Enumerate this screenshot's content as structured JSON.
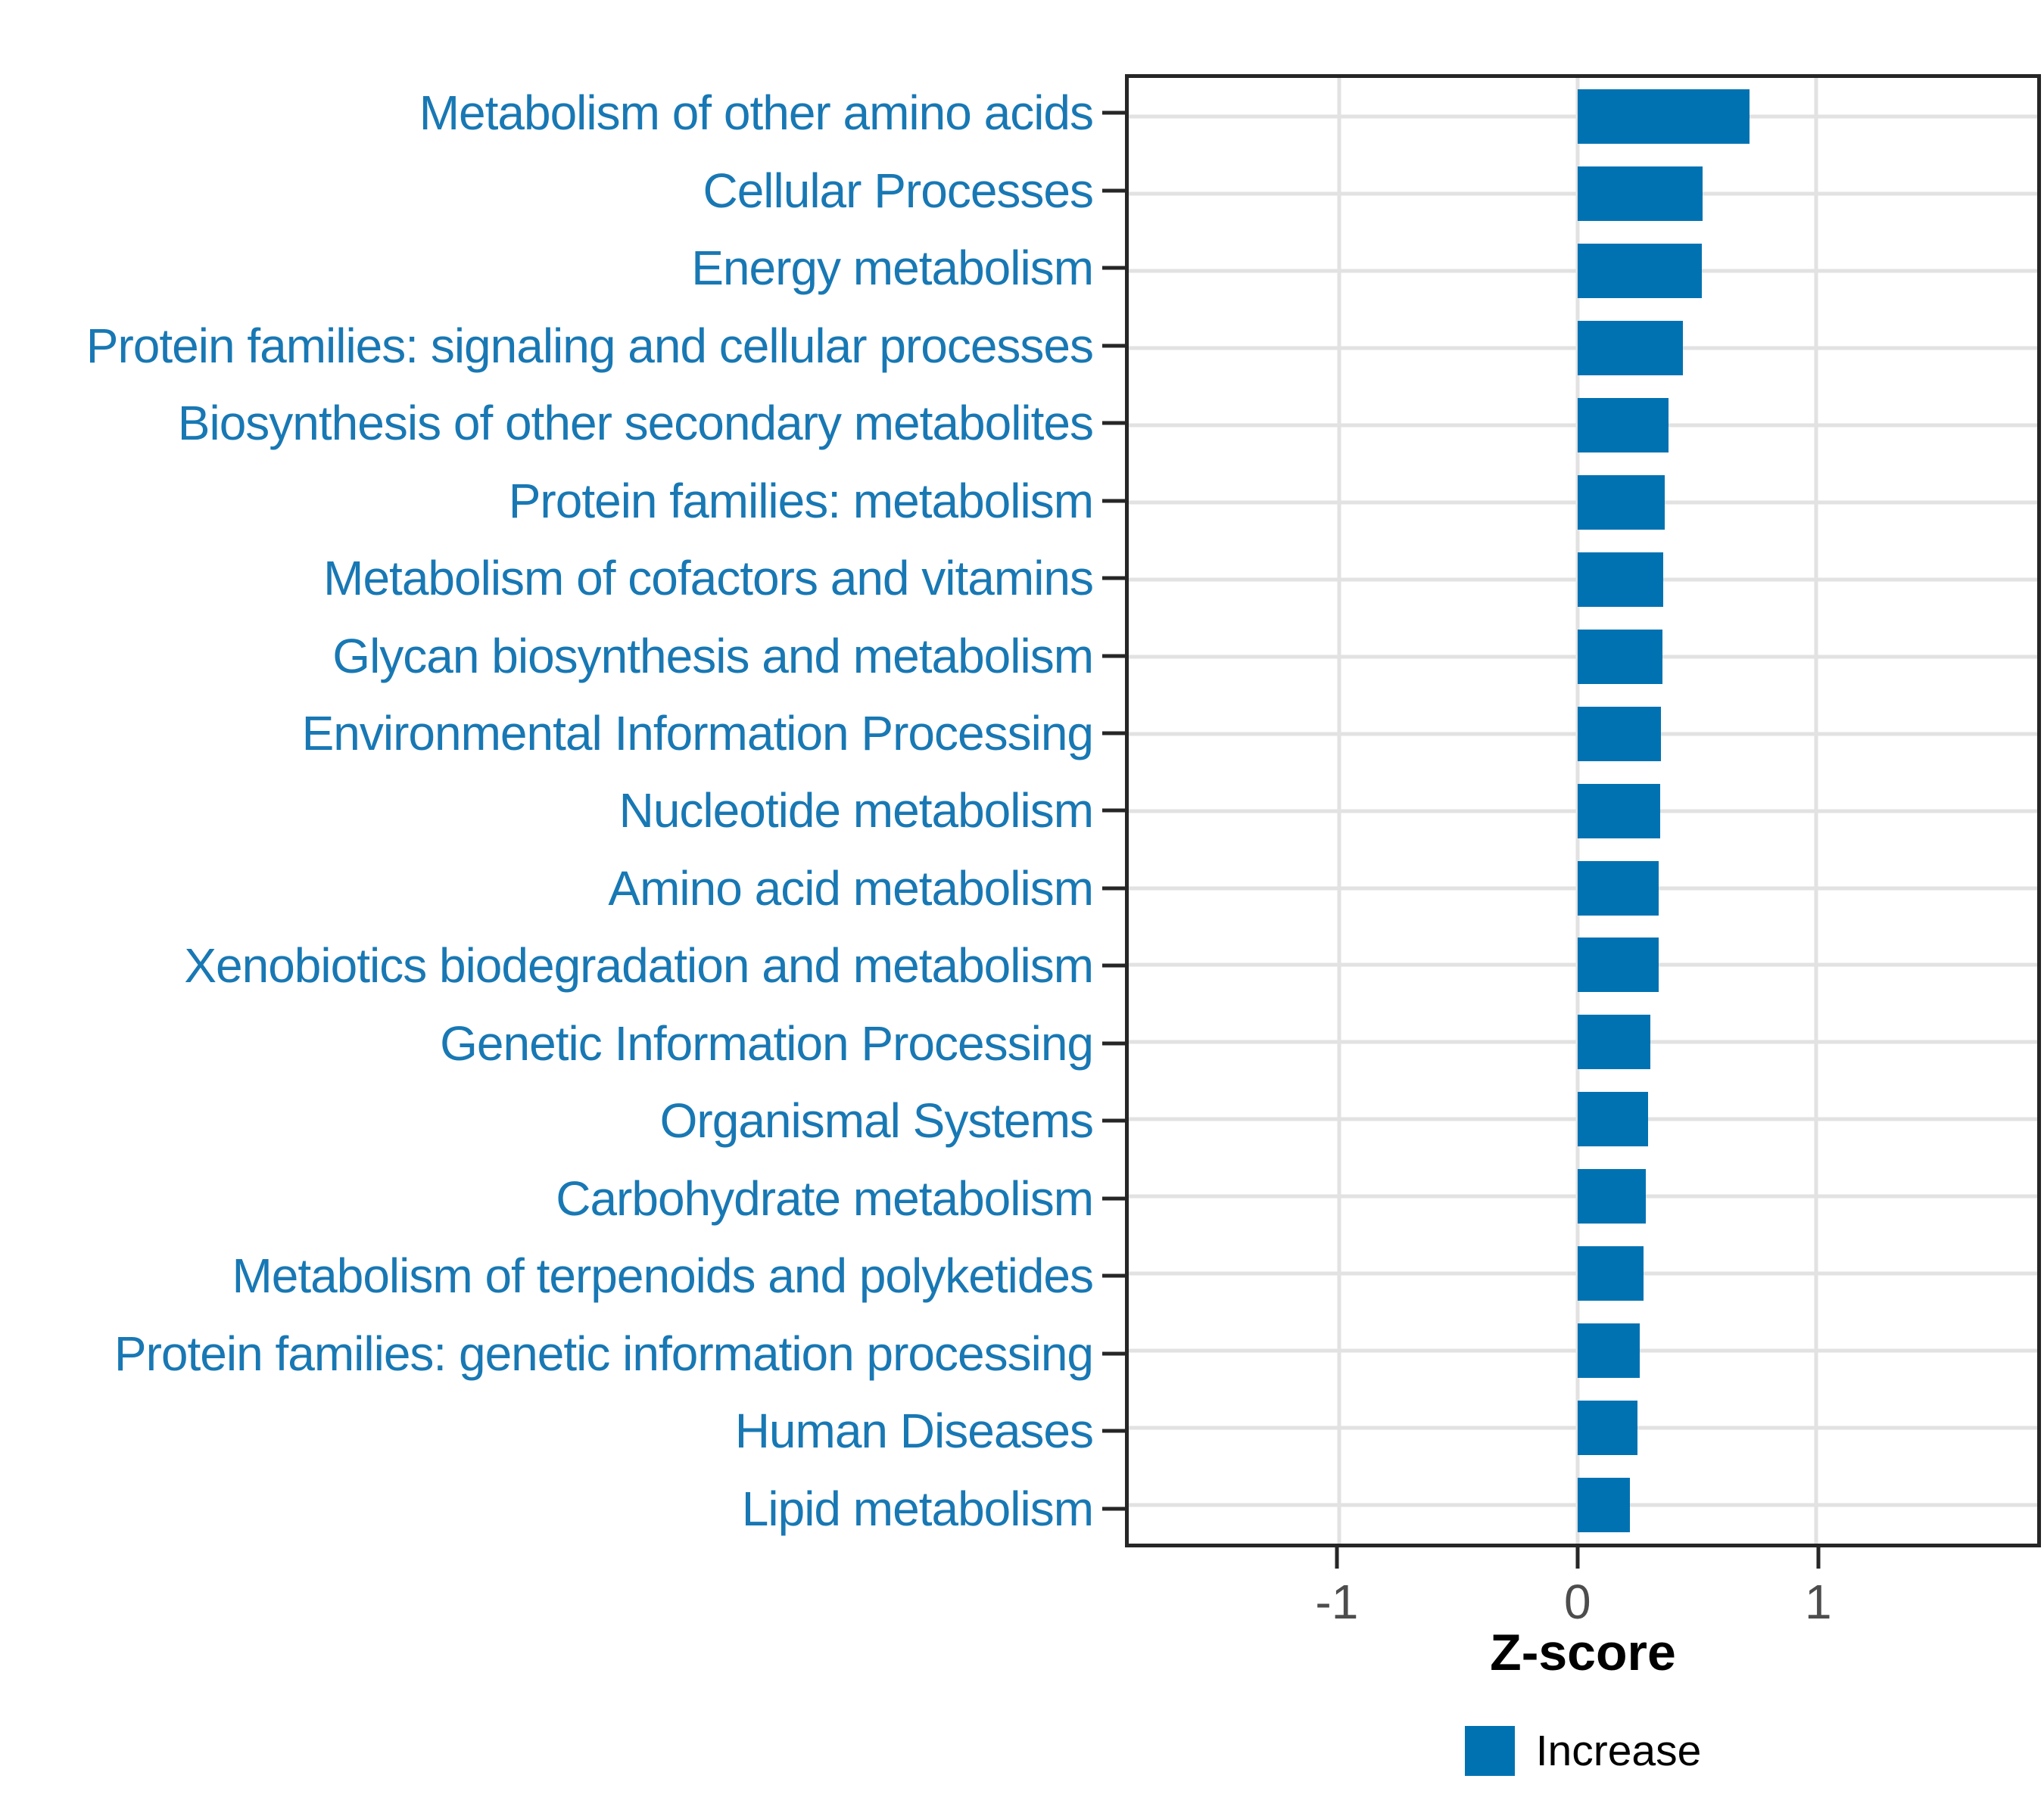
{
  "chart_data": {
    "type": "bar",
    "orientation": "horizontal",
    "title": "",
    "xlabel": "Z-score",
    "ylabel": "",
    "categories": [
      "Metabolism of other amino acids",
      "Cellular Processes",
      "Energy metabolism",
      "Protein families: signaling and cellular processes",
      "Biosynthesis of other secondary metabolites",
      "Protein families: metabolism",
      "Metabolism of cofactors and vitamins",
      "Glycan biosynthesis and metabolism",
      "Environmental Information Processing",
      "Nucleotide metabolism",
      "Amino acid metabolism",
      "Xenobiotics biodegradation and metabolism",
      "Genetic Information Processing",
      "Organismal Systems",
      "Carbohydrate metabolism",
      "Metabolism of terpenoids and polyketides",
      "Protein families: genetic information processing",
      "Human Diseases",
      "Lipid metabolism"
    ],
    "series": [
      {
        "name": "Increase",
        "values": [
          0.72,
          0.525,
          0.52,
          0.44,
          0.38,
          0.365,
          0.36,
          0.355,
          0.35,
          0.345,
          0.34,
          0.34,
          0.305,
          0.295,
          0.285,
          0.275,
          0.26,
          0.25,
          0.22
        ]
      }
    ],
    "xlim": [
      -1.88,
      1.925
    ],
    "x_ticks": [
      -1,
      0,
      1
    ],
    "x_tick_labels": [
      "-1",
      "0",
      "1"
    ],
    "grid": true,
    "legend": {
      "label": "Increase",
      "position": "bottom"
    },
    "colors": {
      "bar": "#0072B2",
      "category_label": "#1878B4",
      "tick_label": "#4D4D4D",
      "gridline": "#E2E2E2",
      "panel_border": "#262626",
      "tick_mark": "#262626",
      "axis_title": "#000000",
      "background": "#FFFFFF"
    }
  }
}
